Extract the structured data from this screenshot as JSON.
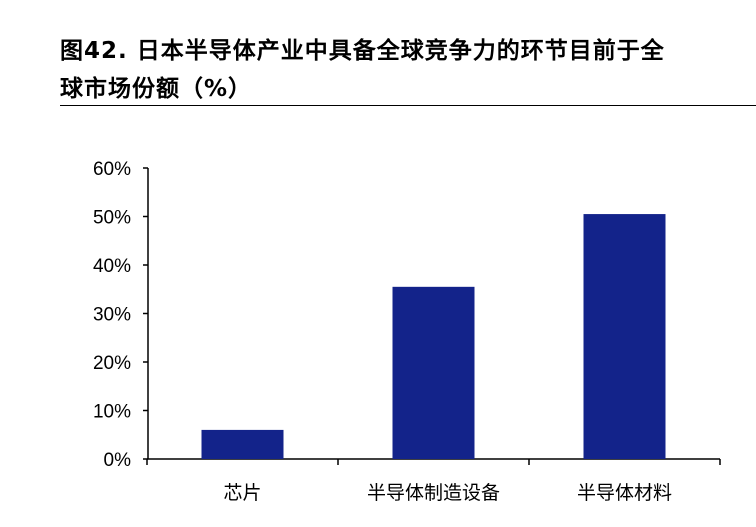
{
  "figure": {
    "title_line1": "图42. 日本半导体产业中具备全球竞争力的环节目前于全",
    "title_line2": "球市场份额（%）"
  },
  "chart_data": {
    "type": "bar",
    "categories": [
      "芯片",
      "半导体制造设备",
      "半导体材料"
    ],
    "values": [
      6,
      35.5,
      50.5
    ],
    "value_unit": "%",
    "ylim": [
      0,
      60
    ],
    "yticks": [
      0,
      10,
      20,
      30,
      40,
      50,
      60
    ],
    "ytick_labels": [
      "0%",
      "10%",
      "20%",
      "30%",
      "40%",
      "50%",
      "60%"
    ],
    "xlabel": "",
    "ylabel": "",
    "grid": false,
    "legend": "none",
    "bar_color": "#13238A",
    "axis_color": "#000000"
  }
}
